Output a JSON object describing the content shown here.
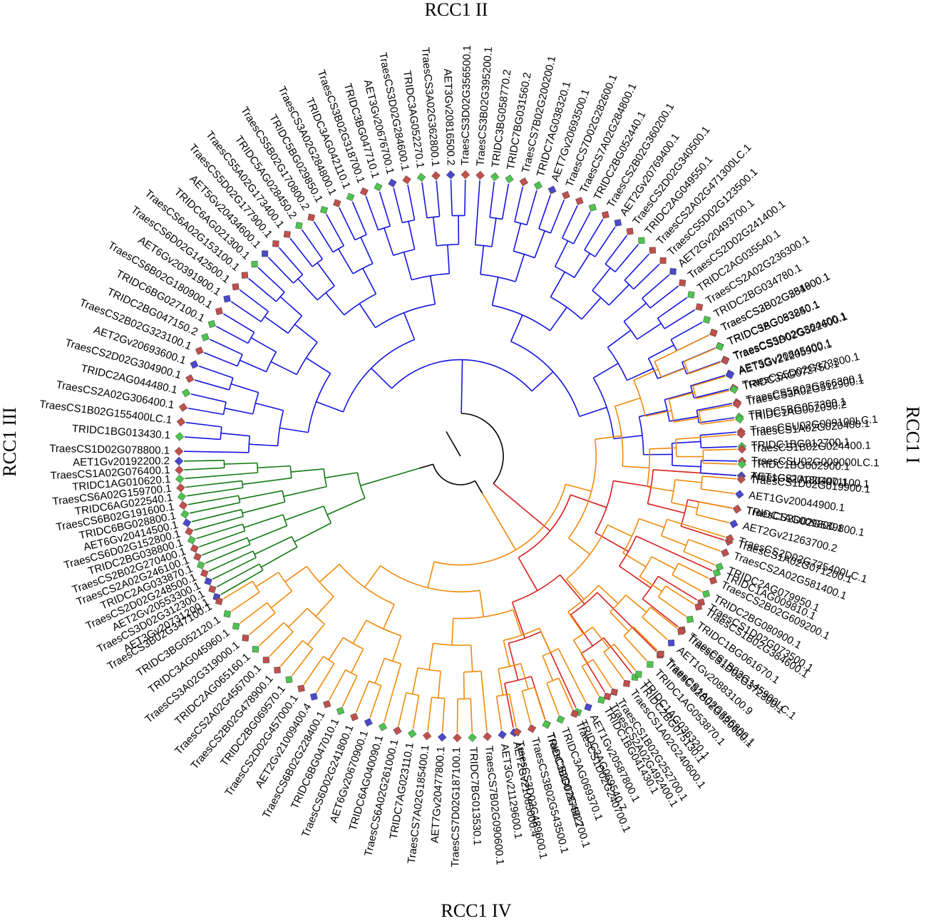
{
  "colors": {
    "I": "#d62020",
    "II": "#1515e0",
    "III": "#127a12",
    "IV": "#f08a0a",
    "root": "#000000",
    "marker_wheat": "#c0504d",
    "marker_einkorn": "#4fc34f",
    "marker_tauschii": "#4a4ac8"
  },
  "group_labels": {
    "I": "RCC1 I",
    "II": "RCC1 II",
    "III": "RCC1 III",
    "IV": "RCC1 IV"
  },
  "tree": {
    "type": "circular phylogenetic tree",
    "tips_by_group": {
      "I": [
        "AET2Gv21085000.4",
        "TraesCS2D02G492700.1",
        "TRIDC2AG069540.7",
        "TraesCS2A02G492400.1",
        "TRIDC2BG075130.1",
        "TraesCS2B02G520600.1",
        "TraesCS1B02G145900LC.1",
        "TraesCS1D02G073500.1",
        "TRIDC1AG009810.1",
        "TraesCS1A02G071200.1",
        "TRIDC1AG009800.1",
        "TraesCS1A02G071100.1"
      ],
      "II": [
        "AET1Gv20180400.1",
        "TraesCSU02G009000LC.1",
        "TRIDC1BG012700.1",
        "TraesCSU02G009100LC.1",
        "TRIDC5BG057300.1",
        "TraesCS5B02G366300.1",
        "TraesCS5D02G373300.1",
        "AET5Gv20845400.1",
        "TraesCS5A02G364400.1",
        "TRIDC5AG053240.1",
        "TraesCS2B02G254900.1",
        "TRIDC2BG034780.1",
        "TraesCS2A02G236300.1",
        "TRIDC2AG035540.1",
        "TraesCS2D02G241400.1",
        "AET2Gv20493700.1",
        "TraesCS5D02G123500.1",
        "TraesCS2A02G471300LC.1",
        "TRIDC2AG049550.1",
        "TraesCS2D02G340500.1",
        "AET2Gv20769400.1",
        "TraesCS2B02G360200.1",
        "TRIDC2BG052440.1",
        "TraesCS7A02G284800.1",
        "TraesCS7D02G282600.1",
        "AET7Gv20693500.1",
        "TRIDC7AG038320.1",
        "TraesCS7B02G200200.1",
        "TRIDC7BG031560.2",
        "TRIDC3BG058770.2",
        "TraesCS3B02G395200.1",
        "TraesCS3D02G356500.1",
        "AET3Gv20816500.2",
        "TraesCS3A02G362800.1",
        "TRIDC3AG052270.1",
        "TraesCS3D02G284600.1",
        "AET3Gv20676700.1",
        "TRIDC3BG047710.1",
        "TraesCS3B02G318700.1",
        "TRIDC3AG042110.1",
        "TraesCS3A02G284800.1",
        "TRIDC5BG029850.1",
        "TraesCS5B02G170800.2",
        "TRIDC5AG028450.2",
        "TraesCS5A02G173400.1",
        "TraesCS5D02G177900.1",
        "AET5Gv20434600.1",
        "TRIDC6AG021300.1",
        "TraesCS6A02G153100.1",
        "TraesCS6D02G142500.1",
        "AET6Gv20391900.1",
        "TraesCS6B02G180900.1",
        "TRIDC6BG027100.1",
        "TRIDC2BG047150.2",
        "TraesCS2B02G323100.1",
        "AET2Gv20693600.1",
        "TraesCS2D02G304900.1",
        "TRIDC2AG044480.1",
        "TraesCS2A02G306400.1",
        "TraesCS1B02G155400LC.1",
        "TRIDC1BG013430.1",
        "TraesCS1D02G078800.1"
      ],
      "III": [
        "AET1Gv20192200.2",
        "TraesCS1A02G076400.1",
        "TRIDC1AG010620.1",
        "TraesCS6A02G159700.1",
        "TRIDC6AG022540.1",
        "TraesCS6B02G191600.1",
        "TRIDC6BG028800.1",
        "AET6Gv20414500.1",
        "TraesCS6D02G152800.1",
        "TRIDC2BG038800.1",
        "TraesCS2B02G270400.1",
        "TraesCS2A02G246100.1",
        "TRIDC2AG033870.1",
        "TraesCS2D02G248500.1",
        "AET2Gv20553300.1",
        "TraesCS3D02G312300.1",
        "AET3Gv20731200.1"
      ],
      "IV": [
        "TraesCS3B02G347100.1",
        "TRIDC3BG052120.1",
        "TRIDC3AG045960.1",
        "TraesCS3A02G319000.1",
        "TRIDC2AG065160.1",
        "TraesCS2A02G456700.1",
        "TraesCS2B02G478900.1",
        "TRIDC2BG069570.1",
        "TraesCS2D02G457000.1",
        "AET2Gv21009400.4",
        "TraesCS6B02G228400.1",
        "TRIDC6BG047010.1",
        "TraesCS6D02G241800.1",
        "AET6Gv20670900.1",
        "TRIDC6AG040090.1",
        "TraesCS6A02G261000.1",
        "TRIDC7AG023110.1",
        "TraesCS7A02G185400.1",
        "AET7Gv20477800.1",
        "TraesCS7D02G187100.1",
        "TRIDC7BG013530.1",
        "TraesCS7B02G090600.1",
        "AET3Gv21129600.1",
        "TraesCS3D02G489600.1",
        "TraesCS3B02G543500.1",
        "TRIDC3BG078750.2",
        "TRIDC3AG069370.1",
        "TraesCS1D02G240700.1",
        "AET1Gv20587800.1",
        "TRIDC1BG041430.1",
        "TraesCS1B02G252700.1",
        "TraesCS1A02G240600.1",
        "TRIDC1AG036320.1",
        "TRIDC1AG053870.1",
        "TraesCS1A02G366800.1",
        "AET1Gv20883100.9",
        "TraesCS1D02G372300.1",
        "TRIDC1BG061670.1",
        "TraesCS1B02G384600.1",
        "TRIDC2BG080900.1",
        "TraesCS2B02G609200.1",
        "TRIDC2AG079950.1",
        "TraesCS2A02G581400.1",
        "TraesCS2D02G725400LC.1",
        "AET2Gv21263700.2",
        "TraesCS2D02G589800.1",
        "AET1Gv20044900.1",
        "TraesCS1D02G019900.1",
        "TRIDC1BG002900.1",
        "TraesCS1B02G024400.1",
        "TraesCS1A02G020400.1",
        "TRIDC1AG002050.2",
        "TraesCS3A02G512900.1",
        "TRIDC3AG072750.1",
        "AET3Gv21205900.1",
        "TraesCS3D02G522600.1",
        "TRIDC3BG083850.1",
        "TraesCS3B02G581600.1"
      ]
    }
  }
}
